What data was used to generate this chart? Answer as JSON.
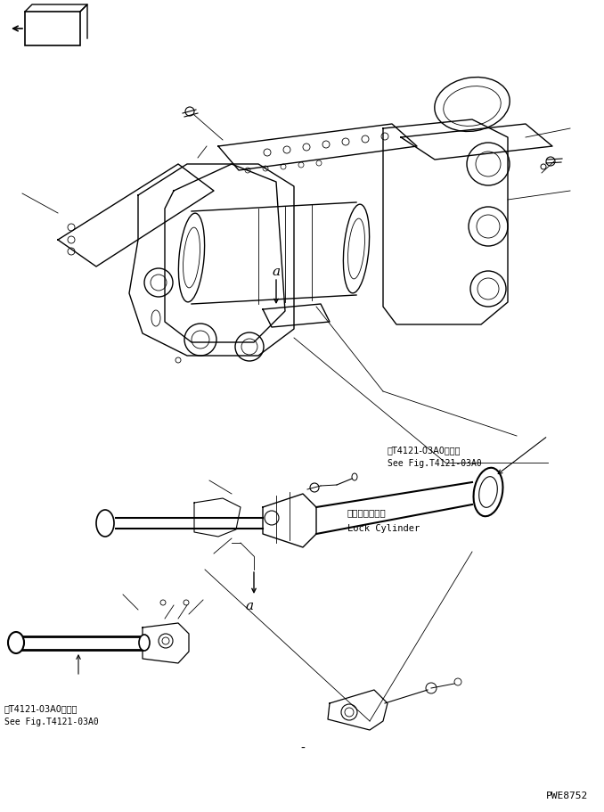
{
  "bg_color": "#ffffff",
  "line_color": "#000000",
  "fig_width": 6.78,
  "fig_height": 9.12,
  "dpi": 100,
  "lock_cylinder_jp": "ロックシリンダ",
  "lock_cylinder_en": "Lock Cylinder",
  "ref_top_jp": "第T4121-03A0図参照",
  "ref_top_en": "See Fig.T4121-03A0",
  "ref_bot_jp": "第T4121-03A0図参照",
  "ref_bot_en": "See Fig.T4121-03A0",
  "code": "PWE8752",
  "dot_marker": "-"
}
